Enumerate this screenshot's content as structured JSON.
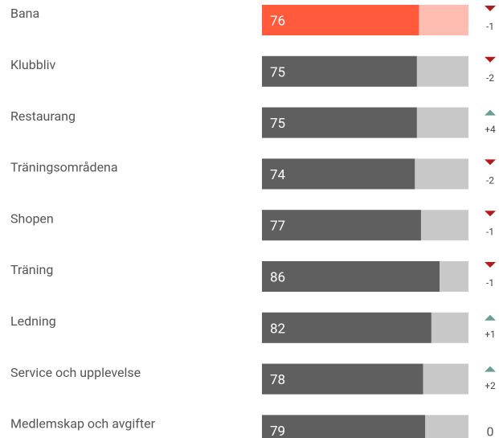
{
  "chart_data": {
    "type": "hbar",
    "categories": [
      "Bana",
      "Klubbliv",
      "Restaurang",
      "Träningsområdena",
      "Shopen",
      "Träning",
      "Ledning",
      "Service och upplevelse",
      "Medlemskap och avgifter"
    ],
    "values": [
      76,
      75,
      75,
      74,
      77,
      86,
      82,
      78,
      79
    ],
    "colors": [
      "#ff5a3c",
      "#5f5f5f",
      "#5f5f5f",
      "#5f5f5f",
      "#5f5f5f",
      "#5f5f5f",
      "#5f5f5f",
      "#5f5f5f",
      "#5f5f5f"
    ],
    "track_colors": [
      "#ffbcb0",
      "#c8c8c8",
      "#c8c8c8",
      "#c8c8c8",
      "#c8c8c8",
      "#c8c8c8",
      "#c8c8c8",
      "#c8c8c8",
      "#c8c8c8"
    ],
    "changes": [
      -1,
      -2,
      4,
      -2,
      -1,
      -1,
      1,
      2,
      0
    ],
    "change_labels": [
      "-1",
      "-2",
      "+4",
      "-2",
      "-1",
      "-1",
      "+1",
      "+2",
      "0"
    ],
    "xlim": [
      0,
      100
    ]
  }
}
